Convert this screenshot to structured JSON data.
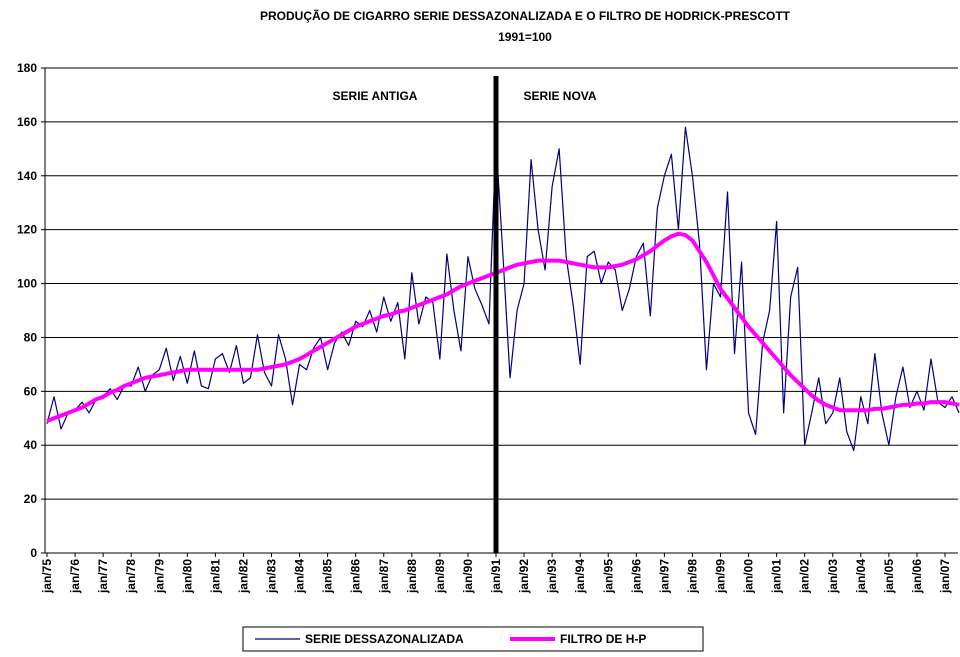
{
  "chart_data": {
    "type": "line",
    "title": "PRODUÇÃO DE CIGARRO SERIE DESSAZONALIZADA E O FILTRO DE HODRICK-PRESCOTT",
    "subtitle": "1991=100",
    "annotations": [
      "SERIE ANTIGA",
      "SERIE NOVA"
    ],
    "categories": [
      "jan/75",
      null,
      null,
      null,
      "jan/76",
      null,
      null,
      null,
      "jan/77",
      null,
      null,
      null,
      "jan/78",
      null,
      null,
      null,
      "jan/79",
      null,
      null,
      null,
      "jan/80",
      null,
      null,
      null,
      "jan/81",
      null,
      null,
      null,
      "jan/82",
      null,
      null,
      null,
      "jan/83",
      null,
      null,
      null,
      "jan/84",
      null,
      null,
      null,
      "jan/85",
      null,
      null,
      null,
      "jan/86",
      null,
      null,
      null,
      "jan/87",
      null,
      null,
      null,
      "jan/88",
      null,
      null,
      null,
      "jan/89",
      null,
      null,
      null,
      "jan/90",
      null,
      null,
      null,
      "jan/91",
      null,
      null,
      null,
      "jan/92",
      null,
      null,
      null,
      "jan/93",
      null,
      null,
      null,
      "jan/94",
      null,
      null,
      null,
      "jan/95",
      null,
      null,
      null,
      "jan/96",
      null,
      null,
      null,
      "jan/97",
      null,
      null,
      null,
      "jan/98",
      null,
      null,
      null,
      "jan/99",
      null,
      null,
      null,
      "jan/00",
      null,
      null,
      null,
      "jan/01",
      null,
      null,
      null,
      "jan/02",
      null,
      null,
      null,
      "jan/03",
      null,
      null,
      null,
      "jan/04",
      null,
      null,
      null,
      "jan/05",
      null,
      null,
      null,
      "jan/06",
      null,
      null,
      null,
      "jan/07",
      null,
      null
    ],
    "series": [
      {
        "name": "SERIE DESSAZONALIZADA",
        "color": "#000080",
        "width": 1.2,
        "values": [
          48,
          58,
          46,
          52,
          53,
          56,
          52,
          57,
          58,
          61,
          57,
          62,
          62,
          69,
          60,
          66,
          68,
          76,
          64,
          73,
          63,
          75,
          62,
          61,
          72,
          74,
          67,
          77,
          63,
          65,
          81,
          67,
          62,
          81,
          72,
          55,
          70,
          68,
          76,
          80,
          68,
          78,
          82,
          77,
          86,
          84,
          90,
          82,
          95,
          86,
          93,
          72,
          104,
          85,
          95,
          93,
          72,
          111,
          90,
          75,
          110,
          98,
          92,
          85,
          153,
          110,
          65,
          90,
          100,
          146,
          120,
          105,
          136,
          150,
          110,
          92,
          70,
          110,
          112,
          100,
          108,
          105,
          90,
          98,
          110,
          115,
          88,
          128,
          140,
          148,
          120,
          158,
          140,
          115,
          68,
          100,
          95,
          134,
          74,
          108,
          52,
          44,
          78,
          90,
          123,
          52,
          95,
          106,
          40,
          52,
          65,
          48,
          52,
          65,
          45,
          38,
          58,
          48,
          74,
          52,
          40,
          58,
          69,
          54,
          60,
          53,
          72,
          56,
          54,
          58,
          52
        ]
      },
      {
        "name": "FILTRO DE H-P",
        "color": "#ff00ff",
        "width": 4,
        "values": [
          49,
          50,
          51,
          52,
          53,
          54,
          55.5,
          57,
          58,
          59.5,
          60.5,
          62,
          63,
          64,
          65,
          65.5,
          66,
          66.5,
          67,
          67.5,
          68,
          68,
          68,
          68,
          68,
          68,
          68,
          68,
          68,
          68,
          68,
          68.5,
          69,
          69.5,
          70,
          71,
          72,
          73.5,
          75,
          76.5,
          78,
          79.5,
          81,
          82.5,
          84,
          85,
          86,
          87,
          88,
          88.5,
          89.5,
          90,
          91,
          92,
          93,
          94,
          95,
          96,
          97.5,
          99,
          100,
          101,
          102,
          103,
          104,
          105,
          106,
          107,
          107.5,
          108,
          108.5,
          108.5,
          108.5,
          108.5,
          108,
          107.5,
          107,
          106.5,
          106,
          106,
          106,
          106.5,
          107,
          108,
          109,
          110.5,
          112,
          114,
          116,
          117.5,
          118.5,
          118,
          116,
          112,
          108,
          103,
          98,
          94.5,
          91,
          87.5,
          84,
          81,
          78,
          75,
          72,
          69,
          66,
          63.5,
          61,
          58.5,
          56.5,
          55,
          54,
          53,
          53,
          53,
          53,
          53,
          53.5,
          53.5,
          54,
          54.5,
          55,
          55,
          55.5,
          55.5,
          56,
          56,
          56,
          55.5,
          55
        ]
      }
    ],
    "ylim": [
      0,
      180
    ],
    "yticks": [
      0,
      20,
      40,
      60,
      80,
      100,
      120,
      140,
      160,
      180
    ],
    "grid": true
  }
}
